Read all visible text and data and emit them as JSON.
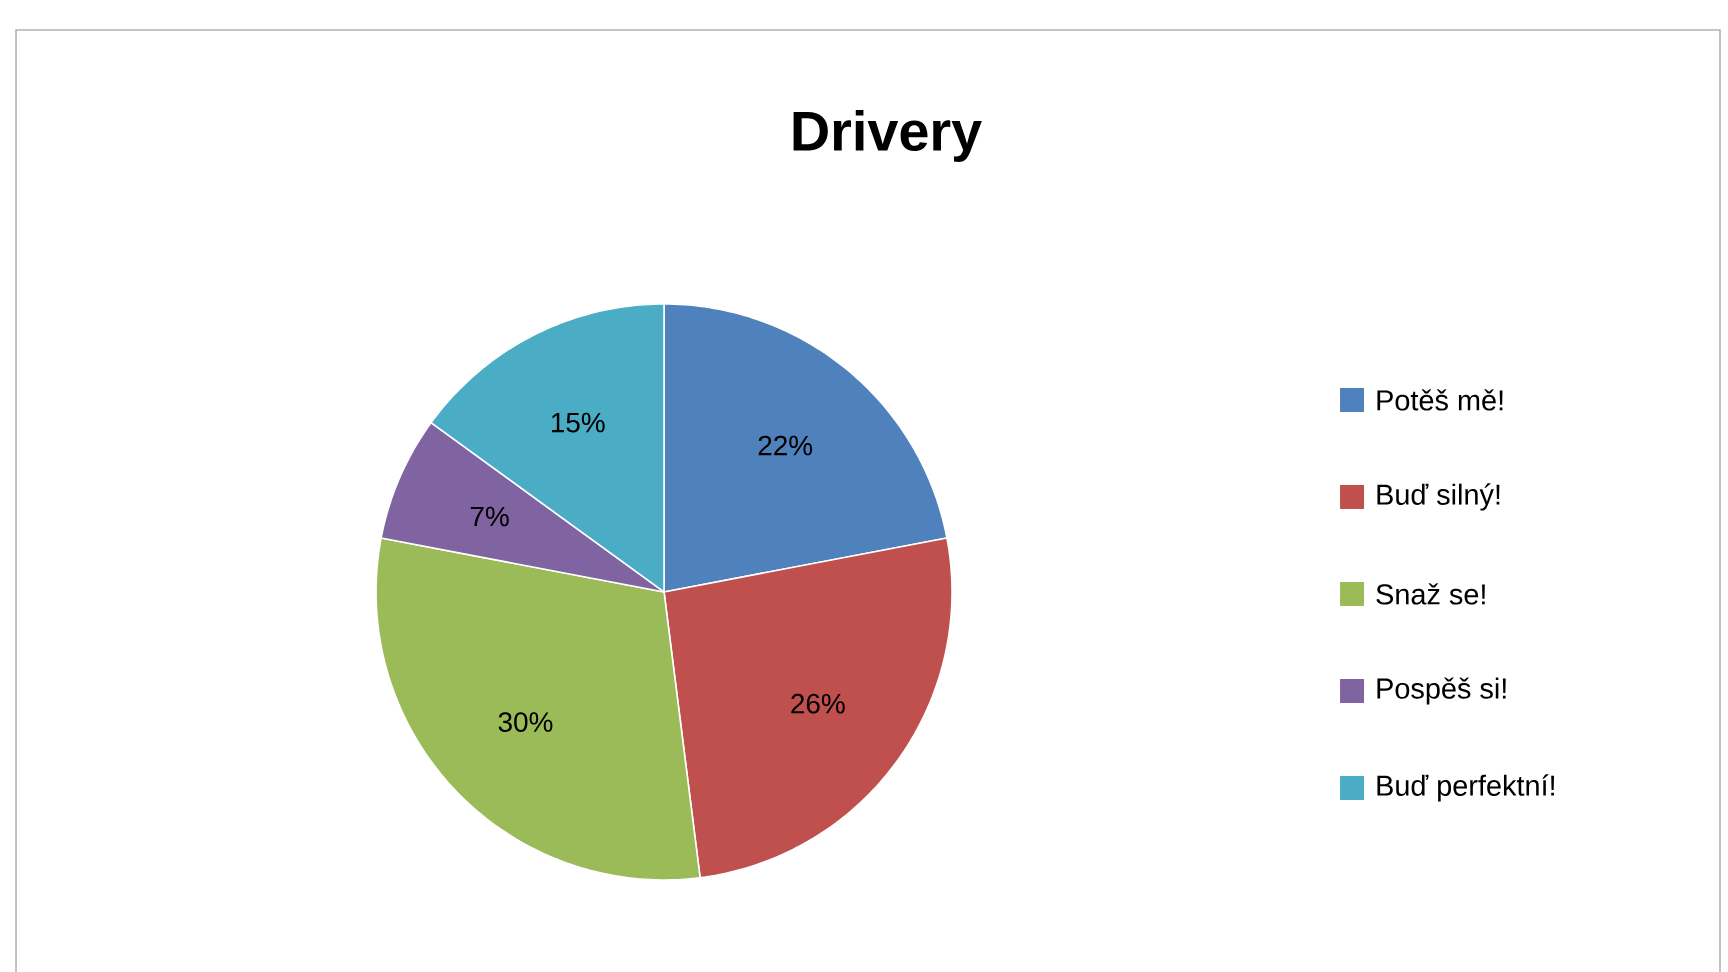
{
  "chart_data": {
    "type": "pie",
    "title": "Drivery",
    "categories": [
      "Potěš mě!",
      "Buď silný!",
      "Snaž se!",
      "Pospěš si!",
      "Buď perfektní!"
    ],
    "values": [
      22,
      26,
      30,
      7,
      15
    ],
    "value_labels": [
      "22%",
      "26%",
      "30%",
      "7%",
      "15%"
    ],
    "colors": [
      "#4f81bd",
      "#c0504d",
      "#9bbb59",
      "#8064a2",
      "#4bacc6"
    ],
    "legend": "right"
  }
}
